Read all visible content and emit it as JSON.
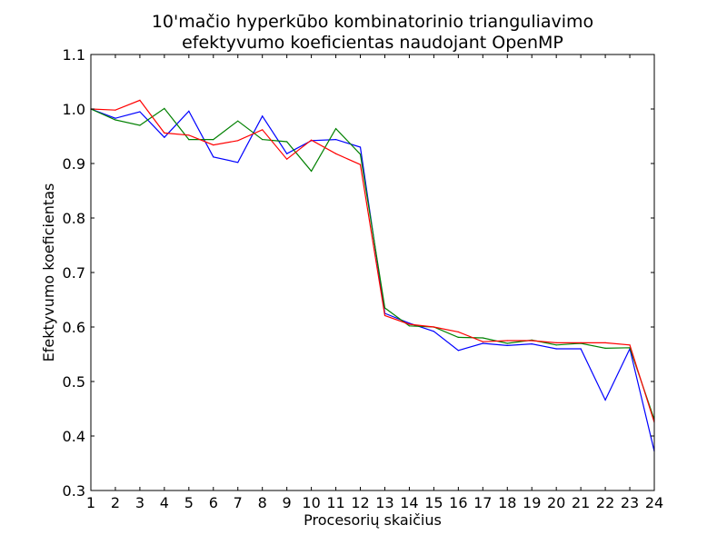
{
  "chart_data": {
    "type": "line",
    "title_lines": [
      "10'mačio hyperkūbo kombinatorinio trianguliavimo",
      "efektyvumo koeficientas naudojant OpenMP"
    ],
    "xlabel": "Procesorių skaičius",
    "ylabel": "Efektyvumo koeficientas",
    "xlim": [
      1,
      24
    ],
    "ylim": [
      0.3,
      1.1
    ],
    "x_ticks": [
      "1",
      "2",
      "3",
      "4",
      "5",
      "6",
      "7",
      "8",
      "9",
      "10",
      "11",
      "12",
      "13",
      "14",
      "15",
      "16",
      "17",
      "18",
      "19",
      "20",
      "21",
      "22",
      "23",
      "24"
    ],
    "y_ticks": [
      "0.3",
      "0.4",
      "0.5",
      "0.6",
      "0.7",
      "0.8",
      "0.9",
      "1.0",
      "1.1"
    ],
    "grid": false,
    "x": [
      1,
      2,
      3,
      4,
      5,
      6,
      7,
      8,
      9,
      10,
      11,
      12,
      13,
      14,
      15,
      16,
      17,
      18,
      19,
      20,
      21,
      22,
      23,
      24
    ],
    "series": [
      {
        "color": "#0000ff",
        "values": [
          1.0,
          0.983,
          0.995,
          0.948,
          0.996,
          0.912,
          0.902,
          0.987,
          0.918,
          0.942,
          0.944,
          0.93,
          0.625,
          0.607,
          0.592,
          0.557,
          0.57,
          0.566,
          0.569,
          0.56,
          0.56,
          0.466,
          0.56,
          0.372
        ]
      },
      {
        "color": "#008000",
        "values": [
          1.0,
          0.98,
          0.97,
          1.001,
          0.944,
          0.944,
          0.978,
          0.944,
          0.94,
          0.886,
          0.964,
          0.917,
          0.635,
          0.602,
          0.6,
          0.581,
          0.58,
          0.57,
          0.576,
          0.567,
          0.57,
          0.561,
          0.562,
          0.43
        ]
      },
      {
        "color": "#ff0000",
        "values": [
          1.0,
          0.998,
          1.016,
          0.956,
          0.952,
          0.934,
          0.942,
          0.962,
          0.908,
          0.943,
          0.918,
          0.898,
          0.621,
          0.605,
          0.6,
          0.591,
          0.573,
          0.575,
          0.575,
          0.571,
          0.571,
          0.571,
          0.567,
          0.425
        ]
      }
    ]
  }
}
